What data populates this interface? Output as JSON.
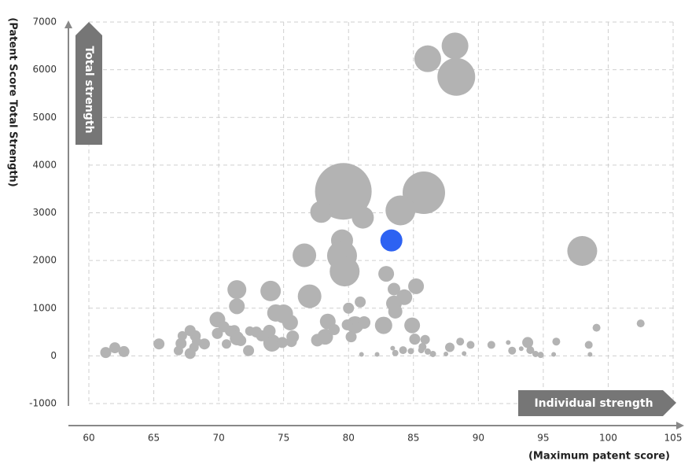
{
  "chart_data": {
    "type": "bubble",
    "annotations": {
      "y_arrow": "Total strength",
      "x_arrow": "Individual strength"
    },
    "y_label": "(Patent Score Total Strength)",
    "x_label": "(Maximum patent score)",
    "xlim": [
      60,
      105
    ],
    "xticks": [
      60,
      65,
      70,
      75,
      80,
      85,
      90,
      95,
      100,
      105
    ],
    "ylim": [
      -1000,
      7000
    ],
    "yticks": [
      -1000,
      0,
      1000,
      2000,
      3000,
      4000,
      5000,
      6000,
      7000
    ],
    "grid": true,
    "series": [
      {
        "color": "#b3b3b3",
        "x": [
          88.2,
          86.1,
          88.3,
          79.6,
          85.8,
          84,
          77.9,
          81.1,
          79.5,
          79.5,
          79.7,
          76.6,
          98,
          77,
          74,
          71.4,
          71.4,
          74.4,
          75,
          75.5,
          69.9,
          78.4,
          80,
          80.9,
          80.5,
          82.7,
          84.9,
          83.5,
          85.2,
          84.3,
          83.5,
          83.6,
          82.9,
          81.2,
          79.9,
          80.2,
          78.2,
          77.6,
          78.9,
          74.1,
          73.9,
          73.3,
          72.9,
          72.4,
          72.3,
          71.4,
          71.2,
          70.9,
          71.7,
          70.4,
          69.9,
          70.6,
          74.9,
          75.7,
          75.6,
          68.9,
          68.2,
          67.8,
          67.8,
          67.2,
          67.1,
          66.9,
          68.3,
          68.1,
          65.4,
          61.3,
          62,
          62.7,
          85.1,
          84.2,
          83.6,
          83.4,
          84.8,
          85.6,
          85.9,
          85.7,
          86.1,
          86.5,
          87.5,
          87.8,
          88.6,
          88.9,
          89.4,
          91,
          92.3,
          92.6,
          93.3,
          93.8,
          94,
          94.4,
          94.8,
          96,
          95.8,
          98.5,
          98.6,
          99.1,
          102.5,
          82.2,
          81
        ],
        "y": [
          6500,
          6230,
          5850,
          3450,
          3420,
          3050,
          3020,
          2900,
          2420,
          2100,
          1770,
          2110,
          2200,
          1250,
          1360,
          1390,
          1040,
          900,
          880,
          700,
          760,
          720,
          1000,
          1130,
          650,
          640,
          640,
          1400,
          1460,
          1230,
          1100,
          930,
          1720,
          700,
          650,
          400,
          400,
          330,
          550,
          270,
          520,
          420,
          500,
          520,
          110,
          370,
          530,
          520,
          320,
          610,
          470,
          250,
          280,
          400,
          300,
          250,
          420,
          530,
          50,
          420,
          260,
          110,
          300,
          180,
          250,
          70,
          170,
          90,
          350,
          120,
          60,
          160,
          100,
          120,
          340,
          190,
          90,
          40,
          40,
          180,
          300,
          50,
          230,
          230,
          280,
          110,
          150,
          280,
          120,
          40,
          20,
          300,
          30,
          230,
          30,
          590,
          680,
          30,
          30
        ],
        "size": [
          17,
          17,
          24,
          36,
          27,
          19,
          14,
          14,
          14,
          19,
          19,
          15,
          19,
          15,
          13,
          12,
          10,
          11,
          12,
          10,
          10,
          10,
          7,
          7,
          11,
          11,
          10,
          8,
          10,
          10,
          10,
          9,
          10,
          8,
          7,
          7,
          10,
          8,
          7,
          11,
          8,
          7,
          7,
          6,
          7,
          9,
          7,
          7,
          7,
          7,
          7,
          6,
          7,
          8,
          7,
          7,
          7,
          7,
          7,
          6,
          7,
          6,
          6,
          6,
          7,
          7,
          7,
          7,
          7,
          5,
          4,
          3,
          4,
          4,
          6,
          5,
          4,
          4,
          3,
          6,
          5,
          3,
          5,
          5,
          3,
          5,
          3,
          7,
          5,
          4,
          4,
          5,
          3,
          5,
          3,
          5,
          5,
          3,
          3
        ]
      },
      {
        "color": "#2d62f2",
        "x": [
          83.3
        ],
        "y": [
          2420
        ],
        "size": [
          14
        ]
      }
    ]
  }
}
